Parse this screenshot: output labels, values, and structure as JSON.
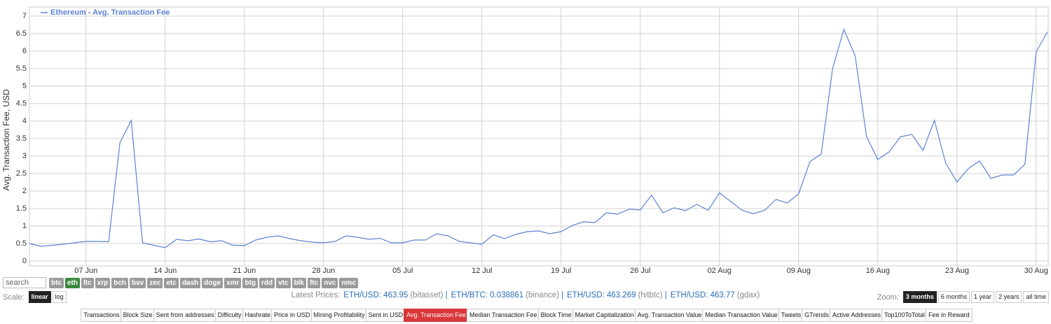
{
  "chart_data": {
    "type": "line",
    "y_label": "Avg. Transaction Fee, USD",
    "categories": [
      null,
      null,
      null,
      null,
      null,
      "07 Jun",
      null,
      null,
      null,
      null,
      null,
      null,
      "14 Jun",
      null,
      null,
      null,
      null,
      null,
      null,
      "21 Jun",
      null,
      null,
      null,
      null,
      null,
      null,
      "28 Jun",
      null,
      null,
      null,
      null,
      null,
      null,
      "05 Jul",
      null,
      null,
      null,
      null,
      null,
      null,
      "12 Jul",
      null,
      null,
      null,
      null,
      null,
      null,
      "19 Jul",
      null,
      null,
      null,
      null,
      null,
      null,
      "26 Jul",
      null,
      null,
      null,
      null,
      null,
      null,
      "02 Aug",
      null,
      null,
      null,
      null,
      null,
      null,
      "09 Aug",
      null,
      null,
      null,
      null,
      null,
      null,
      "16 Aug",
      null,
      null,
      null,
      null,
      null,
      null,
      "23 Aug",
      null,
      null,
      null,
      null,
      null,
      null,
      "30 Aug",
      null
    ],
    "series": [
      {
        "name": "Ethereum - Avg. Transaction Fee",
        "color": "#5b83d4",
        "values": [
          0.5,
          0.42,
          0.45,
          0.48,
          0.52,
          0.56,
          0.56,
          0.55,
          3.38,
          4.02,
          0.52,
          0.45,
          0.38,
          0.62,
          0.58,
          0.63,
          0.55,
          0.58,
          0.45,
          0.44,
          0.6,
          0.68,
          0.72,
          0.64,
          0.58,
          0.54,
          0.52,
          0.56,
          0.72,
          0.68,
          0.62,
          0.65,
          0.52,
          0.52,
          0.6,
          0.6,
          0.78,
          0.72,
          0.56,
          0.52,
          0.48,
          0.75,
          0.64,
          0.76,
          0.84,
          0.86,
          0.78,
          0.84,
          1.02,
          1.12,
          1.1,
          1.38,
          1.34,
          1.48,
          1.46,
          1.88,
          1.38,
          1.52,
          1.44,
          1.62,
          1.45,
          1.95,
          1.7,
          1.45,
          1.35,
          1.45,
          1.76,
          1.66,
          1.92,
          2.84,
          3.06,
          5.5,
          6.62,
          5.86,
          3.56,
          2.9,
          3.12,
          3.55,
          3.62,
          3.16,
          4.02,
          2.8,
          2.26,
          2.64,
          2.86,
          2.36,
          2.46,
          2.46,
          2.76,
          5.98,
          6.55
        ]
      }
    ],
    "ylim": [
      0,
      7
    ],
    "yticks": [
      0,
      0.5,
      1,
      1.5,
      2,
      2.5,
      3,
      3.5,
      4,
      4.5,
      5,
      5.5,
      6,
      6.5,
      7
    ],
    "grid": true,
    "legend": "top-left"
  },
  "ui": {
    "search": "search",
    "coins": [
      {
        "label": "btc"
      },
      {
        "label": "eth",
        "active": true
      },
      {
        "label": "ltc"
      },
      {
        "label": "xrp"
      },
      {
        "label": "bch"
      },
      {
        "label": "bsv"
      },
      {
        "label": "zec"
      },
      {
        "label": "etc"
      },
      {
        "label": "dash"
      },
      {
        "label": "doge"
      },
      {
        "label": "xmr"
      },
      {
        "label": "btg"
      },
      {
        "label": "rdd"
      },
      {
        "label": "vtc"
      },
      {
        "label": "blk"
      },
      {
        "label": "ftc"
      },
      {
        "label": "nvc"
      },
      {
        "label": "nmc"
      }
    ],
    "scale": {
      "label": "Scale:",
      "options": [
        {
          "label": "linear",
          "active": true
        },
        {
          "label": "log"
        }
      ]
    },
    "prices": {
      "label": "Latest Prices:",
      "separator": "|",
      "items": [
        {
          "text": "ETH/USD: 463.95",
          "source": "(bitasset)"
        },
        {
          "text": "ETH/BTC: 0.038861",
          "source": "(binance)"
        },
        {
          "text": "ETH/USD: 463.269",
          "source": "(hitbtc)"
        },
        {
          "text": "ETH/USD: 463.77",
          "source": "(gdax)"
        }
      ]
    },
    "zoom": {
      "label": "Zoom:",
      "options": [
        {
          "label": "3 months",
          "active": true
        },
        {
          "label": "6 months"
        },
        {
          "label": "1 year"
        },
        {
          "label": "2 years"
        },
        {
          "label": "all time"
        }
      ]
    },
    "tabs": [
      {
        "label": "Transactions"
      },
      {
        "label": "Block Size"
      },
      {
        "label": "Sent from addresses"
      },
      {
        "label": "Difficulty"
      },
      {
        "label": "Hashrate"
      },
      {
        "label": "Price in USD"
      },
      {
        "label": "Mining Profitability"
      },
      {
        "label": "Sent in USD"
      },
      {
        "label": "Avg. Transaction Fee",
        "active": true
      },
      {
        "label": "Median Transaction Fee"
      },
      {
        "label": "Block Time"
      },
      {
        "label": "Market Capitalization"
      },
      {
        "label": "Avg. Transaction Value"
      },
      {
        "label": "Median Transaction Value"
      },
      {
        "label": "Tweets"
      },
      {
        "label": "GTrends"
      },
      {
        "label": "Active Addresses"
      },
      {
        "label": "Top100ToTotal"
      },
      {
        "label": "Fee in Reward"
      }
    ]
  }
}
